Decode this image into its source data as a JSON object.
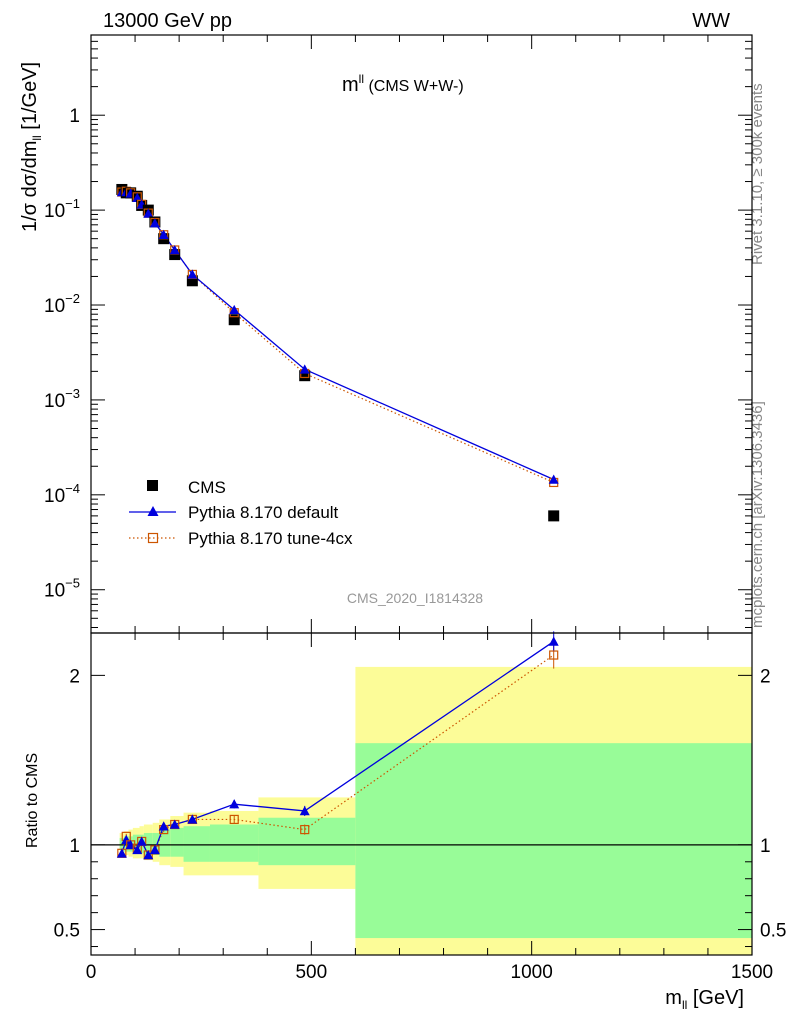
{
  "header": {
    "left": "13000 GeV pp",
    "right": "WW"
  },
  "side_labels": {
    "rivet": "Rivet 3.1.10, ≥ 300k events",
    "mcplots": "mcplots.cern.ch [arXiv:1306.3436]"
  },
  "watermark": "CMS_2020_I1814328",
  "plot_title": {
    "main": "m",
    "sup": "ll",
    "rest": " (CMS W+W-)"
  },
  "ylabel_main": {
    "pre": "1/σ dσ/dm",
    "sub": "ll",
    "post": " [1/GeV]"
  },
  "ylabel_ratio": "Ratio to CMS",
  "xlabel": {
    "pre": "m",
    "sub": "ll",
    "post": " [GeV]"
  },
  "legend": [
    {
      "label": "CMS",
      "color": "#000000"
    },
    {
      "label": "Pythia 8.170 default",
      "color": "#0000dd"
    },
    {
      "label": "Pythia 8.170 tune-4cx",
      "color": "#cc5500"
    }
  ],
  "chart_data": {
    "type": "line",
    "x": [
      70,
      80,
      90,
      105,
      115,
      130,
      145,
      165,
      190,
      230,
      325,
      485,
      1050
    ],
    "xlim": [
      0,
      1500
    ],
    "x_ticks": [
      0,
      500,
      1000,
      1500
    ],
    "main_panel": {
      "yscale": "log",
      "ylim": [
        3.5e-06,
        7
      ],
      "y_ticks": [
        "10^-5",
        "10^-4",
        "10^-3",
        "10^-2",
        "10^-1",
        "1"
      ],
      "series": [
        {
          "name": "CMS",
          "values": [
            0.165,
            0.152,
            0.152,
            0.14,
            0.112,
            0.1,
            0.075,
            0.05,
            0.034,
            0.018,
            0.007,
            0.0018,
            6e-05
          ]
        },
        {
          "name": "Pythia 8.170 default",
          "values": [
            0.155,
            0.155,
            0.15,
            0.135,
            0.115,
            0.092,
            0.073,
            0.055,
            0.038,
            0.021,
            0.0089,
            0.0021,
            0.000145
          ]
        },
        {
          "name": "Pythia 8.170 tune-4cx",
          "values": [
            0.155,
            0.158,
            0.152,
            0.138,
            0.115,
            0.093,
            0.074,
            0.055,
            0.038,
            0.021,
            0.0083,
            0.0019,
            0.000135
          ]
        }
      ]
    },
    "ratio_panel": {
      "ylim": [
        0.35,
        2.25
      ],
      "y_ticks": [
        0.5,
        1,
        2
      ],
      "reference": 1,
      "bands": [
        {
          "x0": 65,
          "x1": 75,
          "inner": [
            0.97,
            1.04
          ],
          "outer": [
            0.95,
            1.07
          ]
        },
        {
          "x0": 75,
          "x1": 85,
          "inner": [
            0.96,
            1.05
          ],
          "outer": [
            0.94,
            1.08
          ]
        },
        {
          "x0": 85,
          "x1": 95,
          "inner": [
            0.96,
            1.05
          ],
          "outer": [
            0.93,
            1.09
          ]
        },
        {
          "x0": 95,
          "x1": 110,
          "inner": [
            0.95,
            1.06
          ],
          "outer": [
            0.92,
            1.1
          ]
        },
        {
          "x0": 110,
          "x1": 120,
          "inner": [
            0.95,
            1.06
          ],
          "outer": [
            0.92,
            1.11
          ]
        },
        {
          "x0": 120,
          "x1": 140,
          "inner": [
            0.94,
            1.07
          ],
          "outer": [
            0.91,
            1.12
          ]
        },
        {
          "x0": 140,
          "x1": 155,
          "inner": [
            0.94,
            1.07
          ],
          "outer": [
            0.9,
            1.13
          ]
        },
        {
          "x0": 155,
          "x1": 180,
          "inner": [
            0.93,
            1.09
          ],
          "outer": [
            0.88,
            1.15
          ]
        },
        {
          "x0": 180,
          "x1": 210,
          "inner": [
            0.93,
            1.1
          ],
          "outer": [
            0.87,
            1.17
          ]
        },
        {
          "x0": 210,
          "x1": 270,
          "inner": [
            0.9,
            1.11
          ],
          "outer": [
            0.82,
            1.19
          ]
        },
        {
          "x0": 270,
          "x1": 380,
          "inner": [
            0.9,
            1.12
          ],
          "outer": [
            0.82,
            1.2
          ]
        },
        {
          "x0": 380,
          "x1": 600,
          "inner": [
            0.88,
            1.16
          ],
          "outer": [
            0.74,
            1.28
          ]
        },
        {
          "x0": 600,
          "x1": 1500,
          "inner": [
            0.45,
            1.6
          ],
          "outer": [
            0.35,
            2.05
          ]
        }
      ],
      "series": [
        {
          "name": "Pythia 8.170 default",
          "values": [
            0.95,
            1.03,
            1.0,
            0.97,
            1.02,
            0.94,
            0.97,
            1.11,
            1.12,
            1.15,
            1.24,
            1.2,
            2.2
          ],
          "errors": [
            0.015,
            0.015,
            0.015,
            0.015,
            0.015,
            0.015,
            0.015,
            0.015,
            0.015,
            0.015,
            0.025,
            0.03,
            0.06
          ]
        },
        {
          "name": "Pythia 8.170 tune-4cx",
          "values": [
            0.95,
            1.05,
            1.0,
            0.98,
            1.02,
            0.94,
            0.97,
            1.09,
            1.12,
            1.15,
            1.15,
            1.09,
            2.12
          ],
          "errors": [
            0.015,
            0.015,
            0.015,
            0.015,
            0.015,
            0.015,
            0.015,
            0.015,
            0.015,
            0.015,
            0.025,
            0.03,
            0.08
          ]
        }
      ]
    },
    "colors": {
      "cms": "#000000",
      "default": "#0000dd",
      "tune4cx": "#cc5500",
      "band_inner": "#98fc98",
      "band_outer": "#fcfc98"
    }
  }
}
